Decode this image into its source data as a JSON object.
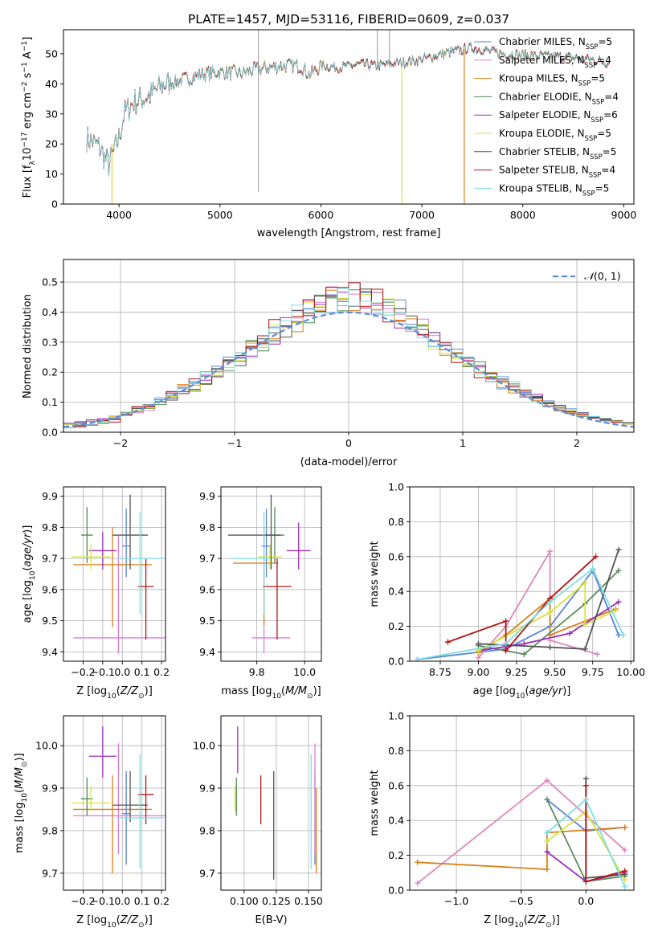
{
  "figure_title": "PLATE=1457, MJD=53116, FIBERID=0609, z=0.037",
  "colors": {
    "Chabrier MILES": "#5c82d9",
    "Salpeter MILES": "#e07ed6",
    "Kroupa MILES": "#d9821c",
    "Chabrier ELODIE": "#4f8a55",
    "Salpeter ELODIE": "#9a2eba",
    "Kroupa ELODIE": "#d6e33a",
    "Chabrier STELIB": "#555555",
    "Salpeter STELIB": "#b21414",
    "Kroupa STELIB": "#7fdde0",
    "mw": [
      "#5c82d9",
      "#e088b8",
      "#d9821c",
      "#5d8a5d",
      "#9a2eba",
      "#d6e33a",
      "#555555",
      "#b21414",
      "#7fdde0"
    ],
    "gauss": "#5b8bd9"
  },
  "chart_data": [
    {
      "id": "spectrum",
      "type": "line",
      "xlabel": "wavelength [Angstrom, rest frame]",
      "ylabel": "Flux [f_λ 10^-17 erg cm^-2 s^-1 A^-1]",
      "xlim": [
        3450,
        9100
      ],
      "ylim": [
        0,
        58
      ],
      "xticks": [
        4000,
        5000,
        6000,
        7000,
        8000,
        9000
      ],
      "yticks": [
        0,
        10,
        20,
        30,
        40,
        50
      ],
      "wavelength_range": [
        3680,
        8850
      ],
      "legend_position": "upper right",
      "continuum": [
        [
          3680,
          22
        ],
        [
          3800,
          19
        ],
        [
          3900,
          13
        ],
        [
          4000,
          22
        ],
        [
          4050,
          30
        ],
        [
          4150,
          34
        ],
        [
          4300,
          36
        ],
        [
          4450,
          40
        ],
        [
          4600,
          41
        ],
        [
          4800,
          43
        ],
        [
          5000,
          44
        ],
        [
          5200,
          43.5
        ],
        [
          5400,
          45
        ],
        [
          5600,
          46
        ],
        [
          5800,
          46
        ],
        [
          5890,
          43
        ],
        [
          6000,
          46
        ],
        [
          6200,
          45.5
        ],
        [
          6400,
          46.5
        ],
        [
          6563,
          46
        ],
        [
          6800,
          47
        ],
        [
          7000,
          48
        ],
        [
          7200,
          50
        ],
        [
          7500,
          52
        ],
        [
          7800,
          50
        ],
        [
          8100,
          49.5
        ],
        [
          8400,
          49
        ],
        [
          8700,
          48
        ],
        [
          8850,
          47
        ]
      ],
      "series": [
        {
          "name": "Chabrier MILES",
          "nssp": "5"
        },
        {
          "name": "Salpeter MILES",
          "nssp": "4"
        },
        {
          "name": "Kroupa MILES",
          "nssp": "5"
        },
        {
          "name": "Chabrier ELODIE",
          "nssp": "4"
        },
        {
          "name": "Salpeter ELODIE",
          "nssp": "6"
        },
        {
          "name": "Kroupa ELODIE",
          "nssp": "5"
        },
        {
          "name": "Chabrier STELIB",
          "nssp": "5"
        },
        {
          "name": "Salpeter STELIB",
          "nssp": "4"
        },
        {
          "name": "Kroupa STELIB",
          "nssp": "5"
        }
      ]
    },
    {
      "id": "residuals",
      "type": "histogram",
      "xlabel": "(data-model)/error",
      "ylabel": "Normed distribution",
      "xlim": [
        -2.5,
        2.5
      ],
      "ylim": [
        0,
        0.575
      ],
      "xticks": [
        -2,
        -1,
        0,
        1,
        2
      ],
      "yticks": [
        0,
        0.1,
        0.2,
        0.3,
        0.4,
        0.5
      ],
      "bin_width": 0.1,
      "grid": true,
      "reference_curve": {
        "name": "N(0,1)",
        "legend_position": "upper right"
      }
    },
    {
      "id": "age_vs_Z",
      "type": "errorbar",
      "xlabel": "Z [log10(Z/Z☉)]",
      "ylabel": "age [log10(age/yr)]",
      "xlim": [
        -0.3,
        0.22
      ],
      "ylim": [
        9.37,
        9.93
      ],
      "xticks": [
        -0.2,
        -0.1,
        0.0,
        0.1,
        0.2
      ],
      "yticks": [
        9.4,
        9.5,
        9.6,
        9.7,
        9.8,
        9.9
      ],
      "points": [
        {
          "series": "Chabrier MILES",
          "x": 0.02,
          "xerr": [
            0.02,
            0.02
          ],
          "y": 9.74,
          "yerr": [
            0.1,
            0.12
          ]
        },
        {
          "series": "Salpeter MILES",
          "x": -0.02,
          "xerr": [
            0.23,
            0.26
          ],
          "y": 9.445,
          "yerr": [
            0.05,
            0.33
          ]
        },
        {
          "series": "Kroupa MILES",
          "x": -0.05,
          "xerr": [
            0.2,
            0.2
          ],
          "y": 9.68,
          "yerr": [
            0.2,
            0.12
          ]
        },
        {
          "series": "Chabrier ELODIE",
          "x": -0.18,
          "xerr": [
            0.03,
            0.03
          ],
          "y": 9.775,
          "yerr": [
            0.09,
            0.09
          ]
        },
        {
          "series": "Salpeter ELODIE",
          "x": -0.1,
          "xerr": [
            0.07,
            0.07
          ],
          "y": 9.725,
          "yerr": [
            0.06,
            0.06
          ]
        },
        {
          "series": "Kroupa ELODIE",
          "x": -0.16,
          "xerr": [
            0.1,
            0.1
          ],
          "y": 9.705,
          "yerr": [
            0.04,
            0.04
          ]
        },
        {
          "series": "Chabrier STELIB",
          "x": 0.04,
          "xerr": [
            0.09,
            0.09
          ],
          "y": 9.775,
          "yerr": [
            0.11,
            0.13
          ]
        },
        {
          "series": "Salpeter STELIB",
          "x": 0.12,
          "xerr": [
            0.04,
            0.04
          ],
          "y": 9.61,
          "yerr": [
            0.17,
            0.09
          ]
        },
        {
          "series": "Kroupa STELIB",
          "x": 0.09,
          "xerr": [
            0.12,
            0.12
          ],
          "y": 9.7,
          "yerr": [
            0.18,
            0.15
          ]
        }
      ]
    },
    {
      "id": "age_vs_mass",
      "type": "errorbar",
      "xlabel": "mass [log10(M/M☉)]",
      "ylabel": "",
      "xlim": [
        9.65,
        10.07
      ],
      "ylim": [
        9.37,
        9.93
      ],
      "xticks": [
        9.8,
        10.0
      ],
      "yticks": [
        9.4,
        9.5,
        9.6,
        9.7,
        9.8,
        9.9
      ],
      "points": [
        {
          "series": "Chabrier MILES",
          "x": 9.84,
          "xerr": [
            0.02,
            0.02
          ],
          "y": 9.74,
          "yerr": [
            0.1,
            0.12
          ]
        },
        {
          "series": "Salpeter MILES",
          "x": 9.83,
          "xerr": [
            0.05,
            0.11
          ],
          "y": 9.445,
          "yerr": [
            0.05,
            0.33
          ]
        },
        {
          "series": "Kroupa MILES",
          "x": 9.83,
          "xerr": [
            0.13,
            0.06
          ],
          "y": 9.685,
          "yerr": [
            0.2,
            0.12
          ]
        },
        {
          "series": "Chabrier ELODIE",
          "x": 9.875,
          "xerr": [
            0.04,
            0.04
          ],
          "y": 9.775,
          "yerr": [
            0.09,
            0.09
          ]
        },
        {
          "series": "Salpeter ELODIE",
          "x": 9.975,
          "xerr": [
            0.05,
            0.05
          ],
          "y": 9.725,
          "yerr": [
            0.06,
            0.09
          ]
        },
        {
          "series": "Kroupa ELODIE",
          "x": 9.855,
          "xerr": [
            0.05,
            0.05
          ],
          "y": 9.705,
          "yerr": [
            0.04,
            0.04
          ]
        },
        {
          "series": "Chabrier STELIB",
          "x": 9.86,
          "xerr": [
            0.18,
            0.04
          ],
          "y": 9.775,
          "yerr": [
            0.11,
            0.13
          ]
        },
        {
          "series": "Salpeter STELIB",
          "x": 9.885,
          "xerr": [
            0.06,
            0.06
          ],
          "y": 9.61,
          "yerr": [
            0.17,
            0.09
          ]
        },
        {
          "series": "Kroupa STELIB",
          "x": 9.83,
          "xerr": [
            0.14,
            0.02
          ],
          "y": 9.7,
          "yerr": [
            0.18,
            0.15
          ]
        }
      ]
    },
    {
      "id": "mass_weight_vs_age",
      "type": "line",
      "xlabel": "age [log10(age/yr)]",
      "ylabel": "mass weight",
      "xlim": [
        8.55,
        10.02
      ],
      "ylim": [
        0,
        1.0
      ],
      "xticks": [
        8.75,
        9.0,
        9.25,
        9.5,
        9.75,
        10.0
      ],
      "yticks": [
        0.0,
        0.2,
        0.4,
        0.6,
        0.8,
        1.0
      ],
      "grid": true,
      "series": [
        {
          "x": [
            8.6,
            9.18,
            9.47,
            9.75,
            9.92
          ],
          "y": [
            0.01,
            0.07,
            0.2,
            0.52,
            0.15
          ]
        },
        {
          "x": [
            9.0,
            9.18,
            9.47,
            9.47,
            9.78
          ],
          "y": [
            0.02,
            0.2,
            0.63,
            0.12,
            0.04
          ]
        },
        {
          "x": [
            9.0,
            9.18,
            9.47,
            9.47,
            9.9
          ],
          "y": [
            0.05,
            0.15,
            0.36,
            0.15,
            0.3
          ]
        },
        {
          "x": [
            9.0,
            9.3,
            9.7,
            9.92
          ],
          "y": [
            0.09,
            0.04,
            0.33,
            0.52
          ]
        },
        {
          "x": [
            9.0,
            9.3,
            9.6,
            9.92
          ],
          "y": [
            0.06,
            0.1,
            0.16,
            0.34
          ]
        },
        {
          "x": [
            9.0,
            9.47,
            9.7,
            9.7,
            9.9
          ],
          "y": [
            0.06,
            0.28,
            0.45,
            0.21,
            0.29
          ]
        },
        {
          "x": [
            9.0,
            9.47,
            9.7,
            9.92
          ],
          "y": [
            0.1,
            0.08,
            0.07,
            0.64
          ]
        },
        {
          "x": [
            8.8,
            9.18,
            9.18,
            9.47,
            9.77
          ],
          "y": [
            0.11,
            0.23,
            0.06,
            0.36,
            0.6
          ]
        },
        {
          "x": [
            8.6,
            9.18,
            9.47,
            9.75,
            9.95
          ],
          "y": [
            0.01,
            0.1,
            0.34,
            0.53,
            0.15
          ]
        }
      ]
    },
    {
      "id": "mass_vs_Z",
      "type": "errorbar",
      "xlabel": "Z [log10(Z/Z☉)]",
      "ylabel": "mass [log10(M/M☉)]",
      "xlim": [
        -0.3,
        0.22
      ],
      "ylim": [
        9.66,
        10.07
      ],
      "xticks": [
        -0.2,
        -0.1,
        0.0,
        0.1,
        0.2
      ],
      "yticks": [
        9.7,
        9.8,
        9.9,
        10.0
      ],
      "points": [
        {
          "series": "Chabrier MILES",
          "x": 0.02,
          "xerr": [
            0.02,
            0.02
          ],
          "y": 9.84,
          "yerr": [
            0.12,
            0.1
          ]
        },
        {
          "series": "Salpeter MILES",
          "x": -0.02,
          "xerr": [
            0.23,
            0.26
          ],
          "y": 9.835,
          "yerr": [
            0.09,
            0.17
          ]
        },
        {
          "series": "Kroupa MILES",
          "x": -0.05,
          "xerr": [
            0.2,
            0.2
          ],
          "y": 9.85,
          "yerr": [
            0.15,
            0.08
          ]
        },
        {
          "series": "Chabrier ELODIE",
          "x": -0.18,
          "xerr": [
            0.03,
            0.03
          ],
          "y": 9.875,
          "yerr": [
            0.04,
            0.05
          ]
        },
        {
          "series": "Salpeter ELODIE",
          "x": -0.1,
          "xerr": [
            0.07,
            0.07
          ],
          "y": 9.975,
          "yerr": [
            0.05,
            0.07
          ]
        },
        {
          "series": "Kroupa ELODIE",
          "x": -0.16,
          "xerr": [
            0.1,
            0.1
          ],
          "y": 9.865,
          "yerr": [
            0.02,
            0.04
          ]
        },
        {
          "series": "Chabrier STELIB",
          "x": 0.04,
          "xerr": [
            0.09,
            0.09
          ],
          "y": 9.86,
          "yerr": [
            0.04,
            0.08
          ]
        },
        {
          "series": "Salpeter STELIB",
          "x": 0.12,
          "xerr": [
            0.04,
            0.04
          ],
          "y": 9.885,
          "yerr": [
            0.07,
            0.045
          ]
        },
        {
          "series": "Kroupa STELIB",
          "x": 0.09,
          "xerr": [
            0.12,
            0.12
          ],
          "y": 9.83,
          "yerr": [
            0.12,
            0.15
          ]
        }
      ]
    },
    {
      "id": "mass_vs_ebv",
      "type": "errorbar",
      "xlabel": "E(B-V)",
      "ylabel": "",
      "xlim": [
        0.082,
        0.16
      ],
      "ylim": [
        9.66,
        10.07
      ],
      "xticks": [
        0.1,
        0.125,
        0.15
      ],
      "yticks": [
        9.7,
        9.8,
        9.9,
        10.0
      ],
      "points": [
        {
          "series": "Chabrier MILES",
          "x": 0.155,
          "y": 9.84,
          "yerr": [
            0.12,
            0.1
          ]
        },
        {
          "series": "Salpeter MILES",
          "x": 0.155,
          "y": 9.835,
          "yerr": [
            0.09,
            0.17
          ]
        },
        {
          "series": "Kroupa MILES",
          "x": 0.156,
          "y": 9.85,
          "yerr": [
            0.15,
            0.05
          ]
        },
        {
          "series": "Chabrier ELODIE",
          "x": 0.094,
          "y": 9.875,
          "yerr": [
            0.04,
            0.05
          ]
        },
        {
          "series": "Salpeter ELODIE",
          "x": 0.095,
          "y": 9.975,
          "yerr": [
            0.04,
            0.07
          ]
        },
        {
          "series": "Kroupa ELODIE",
          "x": 0.093,
          "y": 9.865,
          "yerr": [
            0.02,
            0.04
          ]
        },
        {
          "series": "Chabrier STELIB",
          "x": 0.123,
          "y": 9.86,
          "yerr": [
            0.175,
            0.08
          ]
        },
        {
          "series": "Salpeter STELIB",
          "x": 0.113,
          "y": 9.885,
          "yerr": [
            0.07,
            0.045
          ]
        },
        {
          "series": "Kroupa STELIB",
          "x": 0.152,
          "y": 9.83,
          "yerr": [
            0.12,
            0.15
          ]
        }
      ]
    },
    {
      "id": "mass_weight_vs_Z",
      "type": "line",
      "xlabel": "Z [log10(Z/Z☉)]",
      "ylabel": "mass weight",
      "xlim": [
        -1.36,
        0.37
      ],
      "ylim": [
        0,
        1.0
      ],
      "xticks": [
        -1.0,
        -0.5,
        0.0
      ],
      "yticks": [
        0.0,
        0.2,
        0.4,
        0.6,
        0.8,
        1.0
      ],
      "grid": true,
      "series": [
        {
          "x": [
            -0.3,
            0.0,
            0.3
          ],
          "y": [
            0.52,
            0.34,
            0.36
          ]
        },
        {
          "x": [
            -1.3,
            -0.3,
            0.3
          ],
          "y": [
            0.04,
            0.63,
            0.23
          ]
        },
        {
          "x": [
            -1.3,
            -0.3,
            -0.3,
            0.3
          ],
          "y": [
            0.16,
            0.12,
            0.33,
            0.36
          ]
        },
        {
          "x": [
            -0.3,
            0.0,
            0.3
          ],
          "y": [
            0.52,
            0.05,
            0.08
          ]
        },
        {
          "x": [
            -0.3,
            0.0,
            0.3
          ],
          "y": [
            0.22,
            0.05,
            0.1
          ]
        },
        {
          "x": [
            -0.3,
            0.0,
            0.3
          ],
          "y": [
            0.28,
            0.45,
            0.06
          ]
        },
        {
          "x": [
            0.0,
            0.0,
            0.3
          ],
          "y": [
            0.64,
            0.07,
            0.09
          ]
        },
        {
          "x": [
            0.0,
            0.0,
            0.3
          ],
          "y": [
            0.6,
            0.05,
            0.11
          ]
        },
        {
          "x": [
            -0.3,
            0.0,
            0.3
          ],
          "y": [
            0.33,
            0.52,
            0.02
          ]
        }
      ]
    }
  ]
}
